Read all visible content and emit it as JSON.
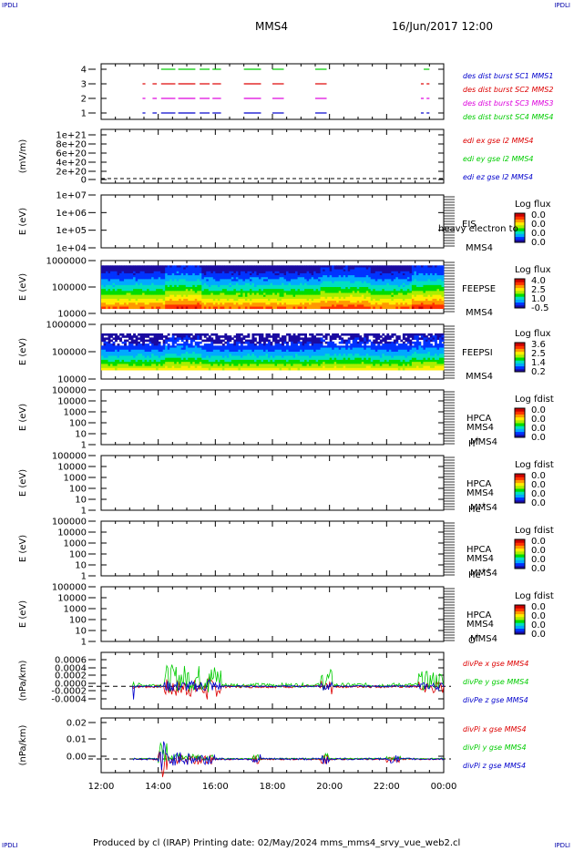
{
  "corners": {
    "tl": "IPDLI",
    "tr": "IPDLI",
    "bl": "IPDLI",
    "br": "IPDLI"
  },
  "header": {
    "spacecraft": "MMS4",
    "datetime": "16/Jun/2017 12:00"
  },
  "footer": "Produced by cl (IRAP)    Printing date: 02/May/2024    mms_mms4_srvy_vue_web2.cl",
  "x_axis": {
    "ticks": [
      "12:00",
      "14:00",
      "16:00",
      "18:00",
      "20:00",
      "22:00",
      "00:00"
    ],
    "range_hours": [
      0,
      12
    ]
  },
  "colors": {
    "red": "#dd0000",
    "green": "#00cc00",
    "blue": "#0000cc",
    "magenta": "#dd00dd"
  },
  "chart_data": [
    {
      "id": "burst",
      "type": "line",
      "yticks": [
        "1",
        "2",
        "3",
        "4"
      ],
      "legend": [
        {
          "label": "des dist burst SC1 MMS1",
          "color": "#0000cc"
        },
        {
          "label": "des dist burst SC2 MMS2",
          "color": "#dd0000"
        },
        {
          "label": "des dist burst SC3 MMS3",
          "color": "#dd00dd"
        },
        {
          "label": "des dist burst SC4 MMS4",
          "color": "#00cc00"
        }
      ],
      "series": [
        {
          "level": 4,
          "color": "#00cc00",
          "intervals": [
            [
              2.1,
              2.6
            ],
            [
              2.7,
              3.3
            ],
            [
              3.45,
              3.8
            ],
            [
              3.9,
              4.2
            ],
            [
              5.0,
              5.6
            ],
            [
              6.0,
              6.4
            ],
            [
              7.5,
              7.9
            ],
            [
              11.3,
              11.5
            ]
          ]
        },
        {
          "level": 3,
          "color": "#dd0000",
          "intervals": [
            [
              1.45,
              1.55
            ],
            [
              1.8,
              1.95
            ],
            [
              2.1,
              2.6
            ],
            [
              2.7,
              3.3
            ],
            [
              3.45,
              3.8
            ],
            [
              3.9,
              4.2
            ],
            [
              5.0,
              5.6
            ],
            [
              6.0,
              6.4
            ],
            [
              7.5,
              7.9
            ],
            [
              11.2,
              11.3
            ],
            [
              11.4,
              11.5
            ]
          ]
        },
        {
          "level": 2,
          "color": "#dd00dd",
          "intervals": [
            [
              1.45,
              1.55
            ],
            [
              1.8,
              1.95
            ],
            [
              2.1,
              2.6
            ],
            [
              2.7,
              3.3
            ],
            [
              3.45,
              3.8
            ],
            [
              3.9,
              4.2
            ],
            [
              5.0,
              5.6
            ],
            [
              6.0,
              6.4
            ],
            [
              7.5,
              7.9
            ],
            [
              11.2,
              11.3
            ],
            [
              11.4,
              11.5
            ]
          ]
        },
        {
          "level": 1,
          "color": "#0000cc",
          "intervals": [
            [
              1.45,
              1.55
            ],
            [
              1.8,
              1.95
            ],
            [
              2.1,
              2.6
            ],
            [
              2.7,
              3.3
            ],
            [
              3.45,
              3.8
            ],
            [
              3.9,
              4.2
            ],
            [
              5.0,
              5.6
            ],
            [
              6.0,
              6.4
            ],
            [
              7.5,
              7.9
            ],
            [
              11.2,
              11.3
            ],
            [
              11.4,
              11.5
            ]
          ]
        }
      ]
    },
    {
      "id": "edi",
      "type": "line",
      "ylabel": "(mV/m)",
      "yticks": [
        "1e+21",
        "8e+20",
        "6e+20",
        "4e+20",
        "2e+20",
        "0"
      ],
      "legend": [
        {
          "label": "edi ex gse l2 MMS4",
          "color": "#dd0000"
        },
        {
          "label": "edi ey gse l2 MMS4",
          "color": "#00cc00"
        },
        {
          "label": "edi ez gse l2 MMS4",
          "color": "#0000cc"
        }
      ]
    },
    {
      "id": "eis",
      "type": "heatmap",
      "ylabel": "E (eV)",
      "yticks": [
        "1e+07",
        "1e+06",
        "1e+05",
        "1e+04"
      ],
      "labels": [
        "EIS",
        "MMS4"
      ],
      "overlay": "heavy electron to",
      "colorbar_title": "Log flux",
      "colorbar_ticks": [
        "0.0",
        "0.0",
        "0.0",
        "0.0"
      ]
    },
    {
      "id": "feepse",
      "type": "heatmap",
      "ylabel": "E (eV)",
      "yticks": [
        "1000000",
        "100000",
        "10000"
      ],
      "labels": [
        "FEEPSE",
        "MMS4"
      ],
      "colorbar_title": "Log flux",
      "colorbar_ticks": [
        "4.0",
        "2.5",
        "1.0",
        "-0.5"
      ]
    },
    {
      "id": "feepsi",
      "type": "heatmap",
      "ylabel": "E (eV)",
      "yticks": [
        "1000000",
        "100000",
        "10000"
      ],
      "labels": [
        "FEEPSI",
        "MMS4"
      ],
      "colorbar_title": "Log flux",
      "colorbar_ticks": [
        "3.6",
        "2.5",
        "1.4",
        "0.2"
      ]
    },
    {
      "id": "hpca_h",
      "type": "heatmap",
      "ylabel": "E (eV)",
      "yticks": [
        "100000",
        "10000",
        "1000",
        "100",
        "10",
        "1"
      ],
      "labels": [
        "HPCA",
        "MMS4"
      ],
      "species": "H",
      "species_sup": "+",
      "colorbar_title": "Log fdist",
      "colorbar_ticks": [
        "0.0",
        "0.0",
        "0.0",
        "0.0"
      ]
    },
    {
      "id": "hpca_he",
      "type": "heatmap",
      "ylabel": "E (eV)",
      "yticks": [
        "100000",
        "10000",
        "1000",
        "100",
        "10",
        "1"
      ],
      "labels": [
        "HPCA",
        "MMS4"
      ],
      "species": "He",
      "species_sup": "+",
      "colorbar_title": "Log fdist",
      "colorbar_ticks": [
        "0.0",
        "0.0",
        "0.0",
        "0.0"
      ]
    },
    {
      "id": "hpca_he2",
      "type": "heatmap",
      "ylabel": "E (eV)",
      "yticks": [
        "100000",
        "10000",
        "1000",
        "100",
        "10",
        "1"
      ],
      "labels": [
        "HPCA",
        "MMS4"
      ],
      "species": "He",
      "species_sup": "++",
      "colorbar_title": "Log fdist",
      "colorbar_ticks": [
        "0.0",
        "0.0",
        "0.0",
        "0.0"
      ]
    },
    {
      "id": "hpca_o",
      "type": "heatmap",
      "ylabel": "E (eV)",
      "yticks": [
        "100000",
        "10000",
        "1000",
        "100",
        "10",
        "1"
      ],
      "labels": [
        "HPCA",
        "MMS4"
      ],
      "species": "O",
      "species_sup": "+",
      "colorbar_title": "Log fdist",
      "colorbar_ticks": [
        "0.0",
        "0.0",
        "0.0",
        "0.0"
      ]
    },
    {
      "id": "divpe",
      "type": "line",
      "ylabel": "(nPa/km)",
      "yticks": [
        "0.0006",
        "0.0004",
        "0.0002",
        "0.0000",
        "-0.0002",
        "-0.0004"
      ],
      "ylim": [
        -0.0005,
        0.00075
      ],
      "legend": [
        {
          "label": "divPe x gse MMS4",
          "color": "#dd0000"
        },
        {
          "label": "divPe y gse MMS4",
          "color": "#00cc00"
        },
        {
          "label": "divPe z gse MMS4",
          "color": "#0000cc"
        }
      ]
    },
    {
      "id": "divpi",
      "type": "line",
      "ylabel": "(nPa/km)",
      "yticks": [
        "0.02",
        "0.01",
        "0.00"
      ],
      "ylim": [
        -0.008,
        0.024
      ],
      "legend": [
        {
          "label": "divPi x gse MMS4",
          "color": "#dd0000"
        },
        {
          "label": "divPi y gse MMS4",
          "color": "#00cc00"
        },
        {
          "label": "divPi z gse MMS4",
          "color": "#0000cc"
        }
      ]
    }
  ]
}
